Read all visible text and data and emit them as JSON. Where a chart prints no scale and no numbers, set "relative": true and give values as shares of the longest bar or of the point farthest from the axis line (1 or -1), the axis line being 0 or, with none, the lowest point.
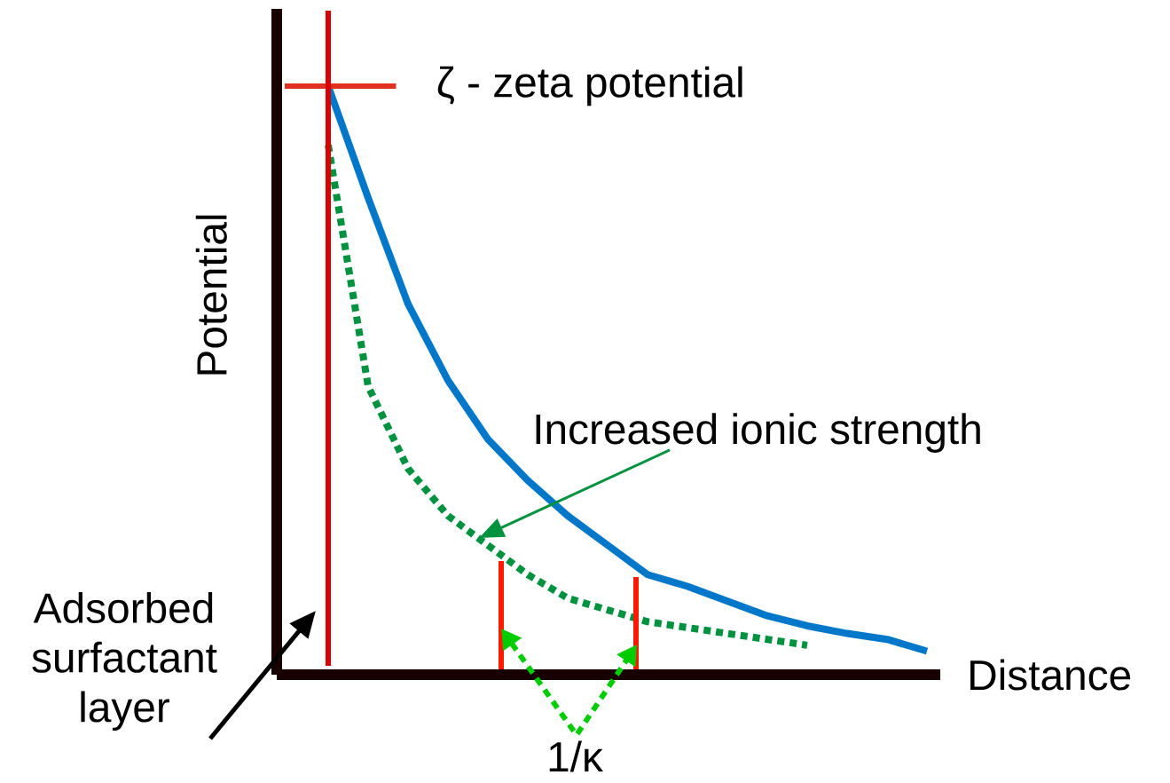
{
  "chart_data": {
    "type": "line",
    "relative": true,
    "xlabel": "Distance",
    "ylabel": "Potential",
    "categories": [
      null,
      null,
      null,
      null,
      null,
      null,
      null,
      null,
      null,
      null,
      null,
      null,
      null,
      null,
      null,
      null
    ],
    "series": [
      {
        "color": "#0077c8",
        "line_style": "solid",
        "values": [
          1.0,
          0.81,
          0.63,
          0.5,
          0.4,
          0.33,
          0.27,
          0.22,
          0.17,
          0.15,
          0.125,
          0.1,
          0.083,
          0.07,
          0.06,
          0.04
        ]
      },
      {
        "color": "#00923f",
        "line_style": "dotted",
        "values": [
          0.9,
          0.49,
          0.35,
          0.27,
          0.22,
          0.17,
          0.13,
          0.11,
          0.09,
          0.08,
          0.07,
          0.06,
          0.05,
          null,
          null,
          null
        ]
      }
    ],
    "ref_lines": [
      {
        "axis": "y",
        "value": 1.0,
        "label": "ζ - zeta potential",
        "color": "#e03020"
      }
    ],
    "annotations": [
      "Increased ionic strength",
      "1/κ",
      "Adsorbed surfactant layer"
    ],
    "marker": "none"
  }
}
